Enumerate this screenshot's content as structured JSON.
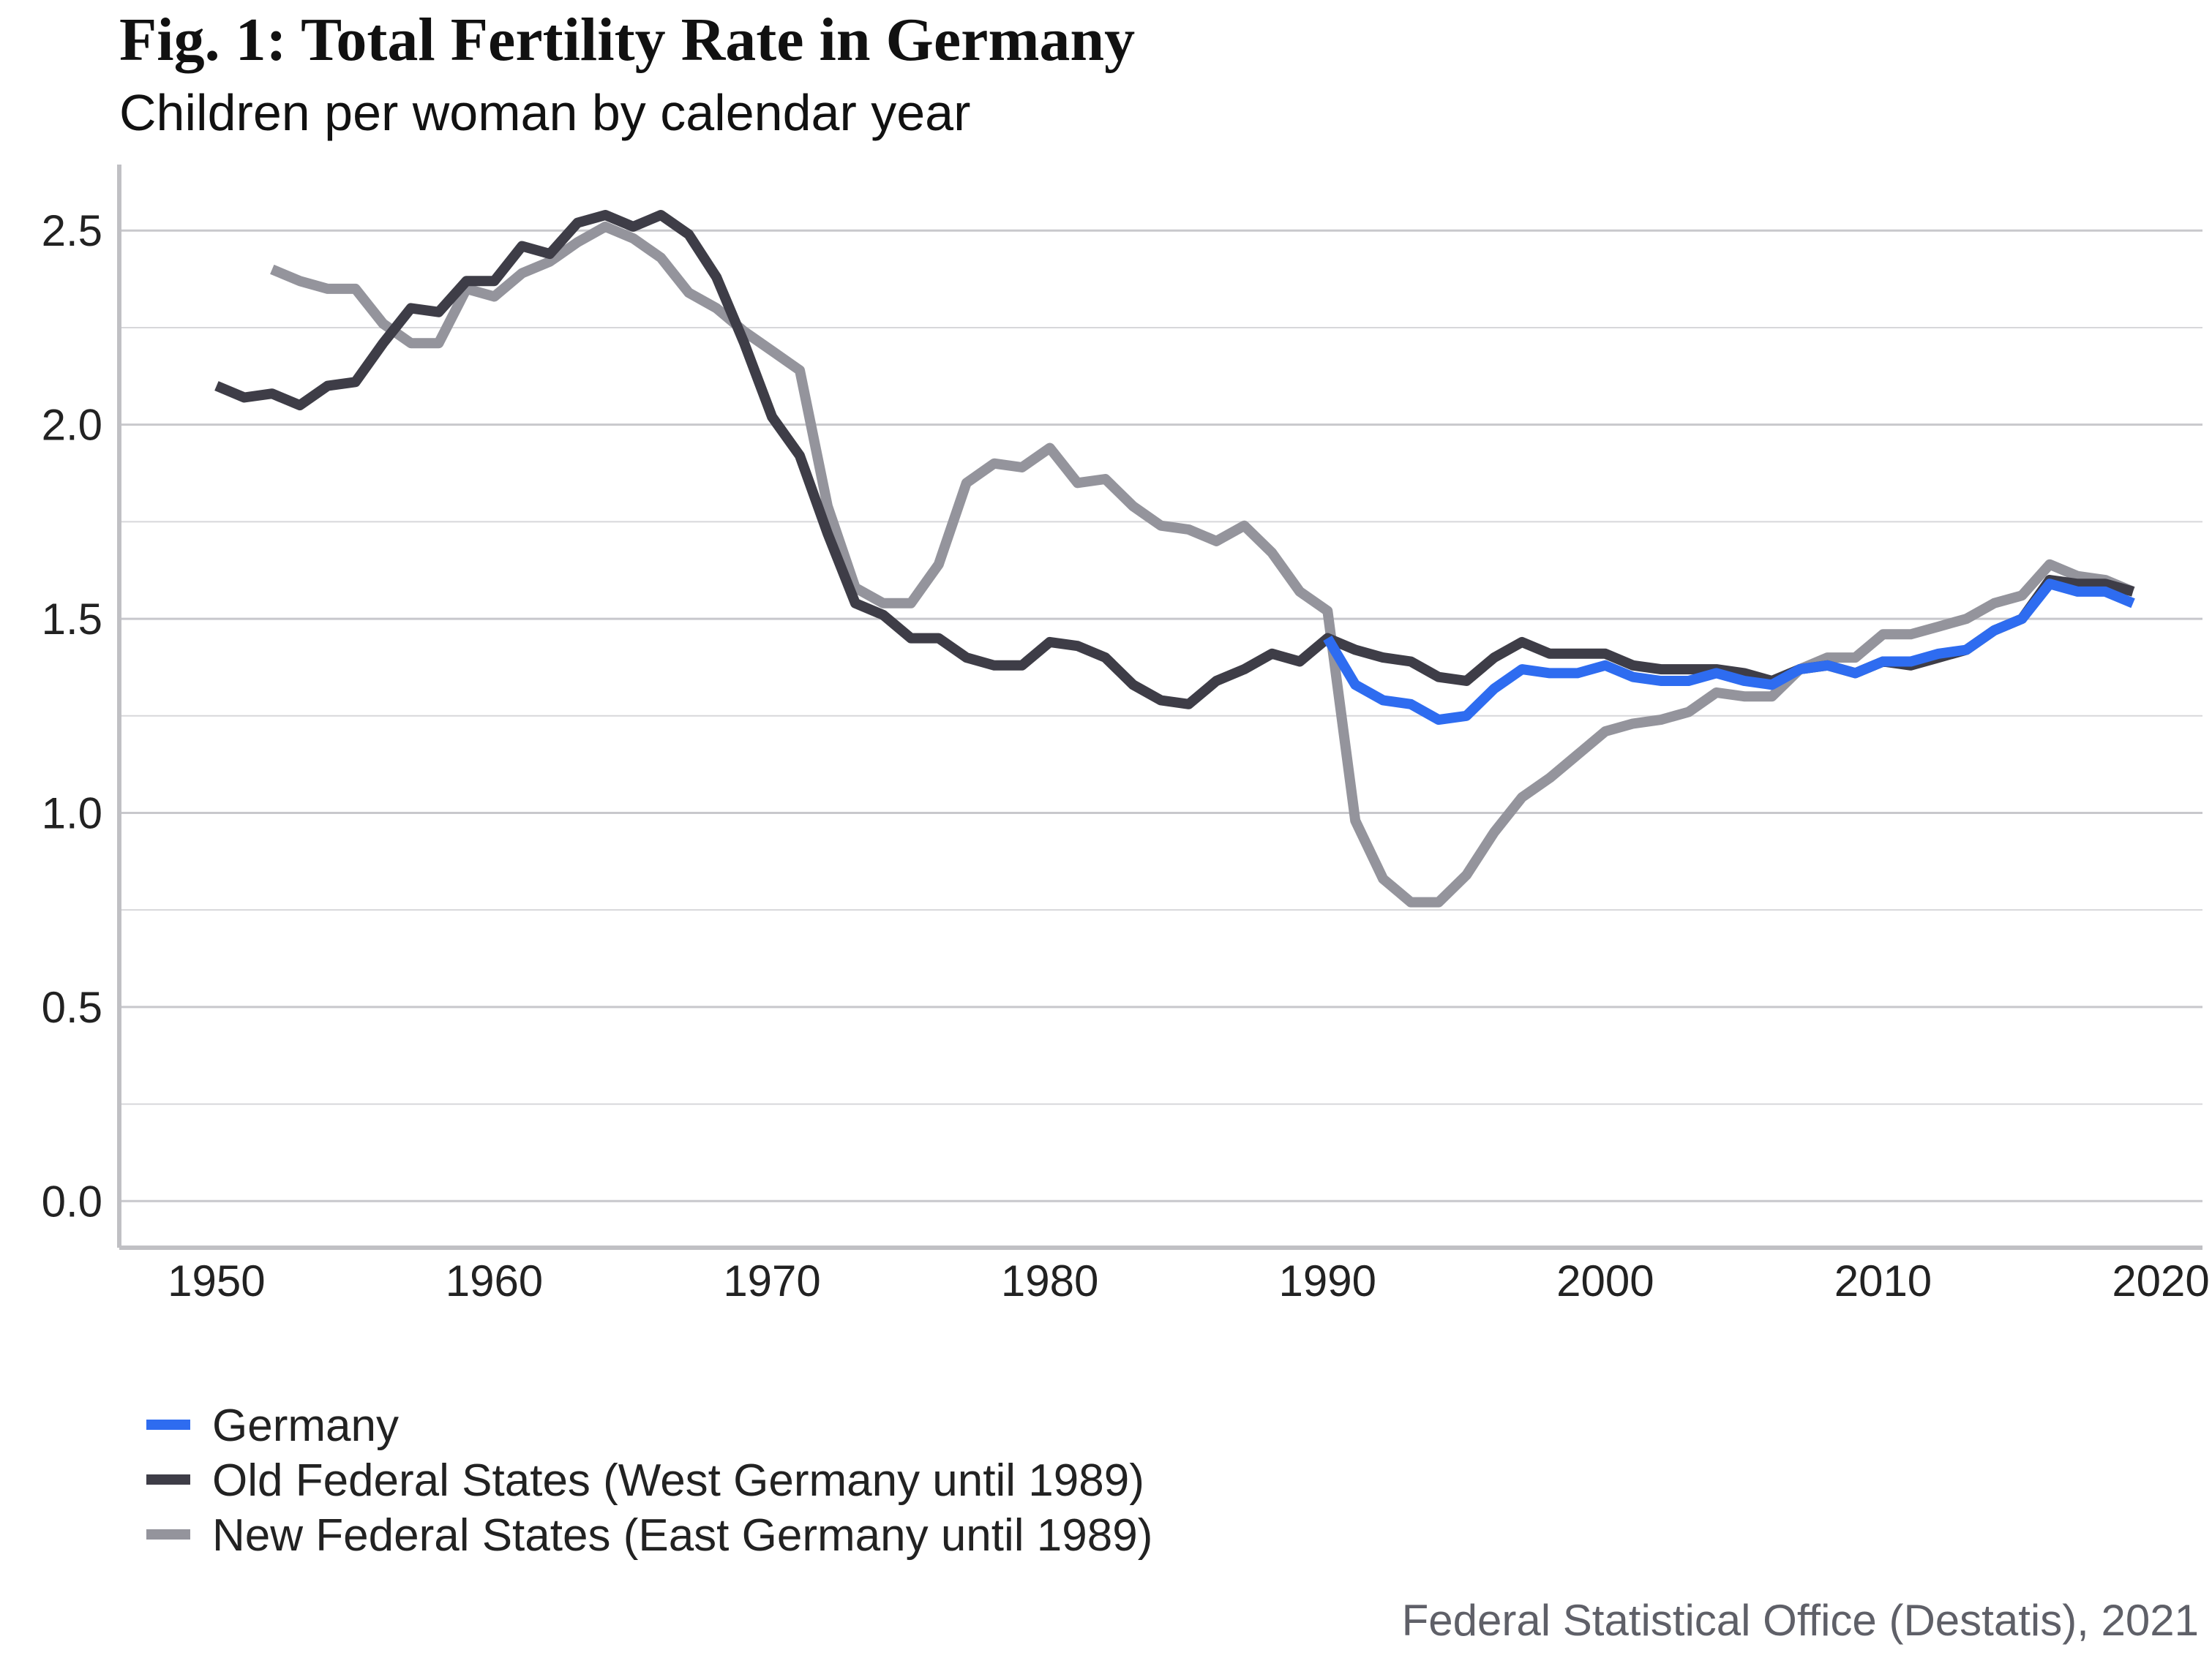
{
  "chart_data": {
    "type": "line",
    "title": "Fig. 1: Total Fertility Rate in Germany",
    "subtitle": "Children per woman by calendar year",
    "caption": "Federal Statistical Office (Destatis), 2021",
    "xlim": [
      1946.5,
      2021.5
    ],
    "ylim": [
      -0.12,
      2.67
    ],
    "x_ticks": [
      1950,
      1960,
      1970,
      1980,
      1990,
      2000,
      2010,
      2020
    ],
    "y_ticks": [
      0.0,
      0.5,
      1.0,
      1.5,
      2.0,
      2.5
    ],
    "y_tick_labels": [
      "0.0",
      "0.5",
      "1.0",
      "1.5",
      "2.0",
      "2.5"
    ],
    "minor_y_ticks": [
      0.25,
      0.75,
      1.25,
      1.75,
      2.25
    ],
    "grid": "horizontal",
    "legend_position": "bottom-left",
    "series": [
      {
        "name": "New Federal States (East Germany until 1989)",
        "color": "#94949c",
        "x": [
          1952,
          1953,
          1954,
          1955,
          1956,
          1957,
          1958,
          1959,
          1960,
          1961,
          1962,
          1963,
          1964,
          1965,
          1966,
          1967,
          1968,
          1969,
          1970,
          1971,
          1972,
          1973,
          1974,
          1975,
          1976,
          1977,
          1978,
          1979,
          1980,
          1981,
          1982,
          1983,
          1984,
          1985,
          1986,
          1987,
          1988,
          1989,
          1990,
          1991,
          1992,
          1993,
          1994,
          1995,
          1996,
          1997,
          1998,
          1999,
          2000,
          2001,
          2002,
          2003,
          2004,
          2005,
          2006,
          2007,
          2008,
          2009,
          2010,
          2011,
          2012,
          2013,
          2014,
          2015,
          2016,
          2017,
          2018,
          2019
        ],
        "y": [
          2.4,
          2.37,
          2.35,
          2.35,
          2.26,
          2.21,
          2.21,
          2.35,
          2.33,
          2.39,
          2.42,
          2.47,
          2.51,
          2.48,
          2.43,
          2.34,
          2.3,
          2.24,
          2.19,
          2.14,
          1.79,
          1.58,
          1.54,
          1.54,
          1.64,
          1.85,
          1.9,
          1.89,
          1.94,
          1.85,
          1.86,
          1.79,
          1.74,
          1.73,
          1.7,
          1.74,
          1.67,
          1.57,
          1.52,
          0.98,
          0.83,
          0.77,
          0.77,
          0.84,
          0.95,
          1.04,
          1.09,
          1.15,
          1.21,
          1.23,
          1.24,
          1.26,
          1.31,
          1.3,
          1.3,
          1.37,
          1.4,
          1.4,
          1.46,
          1.46,
          1.48,
          1.5,
          1.54,
          1.56,
          1.64,
          1.61,
          1.6,
          1.57
        ]
      },
      {
        "name": "Old Federal States (West Germany until 1989)",
        "color": "#3e3d47",
        "x": [
          1950,
          1951,
          1952,
          1953,
          1954,
          1955,
          1956,
          1957,
          1958,
          1959,
          1960,
          1961,
          1962,
          1963,
          1964,
          1965,
          1966,
          1967,
          1968,
          1969,
          1970,
          1971,
          1972,
          1973,
          1974,
          1975,
          1976,
          1977,
          1978,
          1979,
          1980,
          1981,
          1982,
          1983,
          1984,
          1985,
          1986,
          1987,
          1988,
          1989,
          1990,
          1991,
          1992,
          1993,
          1994,
          1995,
          1996,
          1997,
          1998,
          1999,
          2000,
          2001,
          2002,
          2003,
          2004,
          2005,
          2006,
          2007,
          2008,
          2009,
          2010,
          2011,
          2012,
          2013,
          2014,
          2015,
          2016,
          2017,
          2018,
          2019
        ],
        "y": [
          2.1,
          2.07,
          2.08,
          2.05,
          2.1,
          2.11,
          2.21,
          2.3,
          2.29,
          2.37,
          2.37,
          2.46,
          2.44,
          2.52,
          2.54,
          2.51,
          2.54,
          2.49,
          2.38,
          2.21,
          2.02,
          1.92,
          1.72,
          1.54,
          1.51,
          1.45,
          1.45,
          1.4,
          1.38,
          1.38,
          1.44,
          1.43,
          1.4,
          1.33,
          1.29,
          1.28,
          1.34,
          1.37,
          1.41,
          1.39,
          1.45,
          1.42,
          1.4,
          1.39,
          1.35,
          1.34,
          1.4,
          1.44,
          1.41,
          1.41,
          1.41,
          1.38,
          1.37,
          1.37,
          1.37,
          1.36,
          1.34,
          1.37,
          1.38,
          1.36,
          1.39,
          1.38,
          1.4,
          1.42,
          1.47,
          1.5,
          1.6,
          1.59,
          1.59,
          1.57
        ]
      },
      {
        "name": "Germany",
        "color": "#2e6cf0",
        "x": [
          1990,
          1991,
          1992,
          1993,
          1994,
          1995,
          1996,
          1997,
          1998,
          1999,
          2000,
          2001,
          2002,
          2003,
          2004,
          2005,
          2006,
          2007,
          2008,
          2009,
          2010,
          2011,
          2012,
          2013,
          2014,
          2015,
          2016,
          2017,
          2018,
          2019
        ],
        "y": [
          1.45,
          1.33,
          1.29,
          1.28,
          1.24,
          1.25,
          1.32,
          1.37,
          1.36,
          1.36,
          1.38,
          1.35,
          1.34,
          1.34,
          1.36,
          1.34,
          1.33,
          1.37,
          1.38,
          1.36,
          1.39,
          1.39,
          1.41,
          1.42,
          1.47,
          1.5,
          1.59,
          1.57,
          1.57,
          1.54
        ]
      }
    ],
    "legend_order": [
      "Germany",
      "Old Federal States (West Germany until 1989)",
      "New Federal States (East Germany until 1989)"
    ]
  }
}
